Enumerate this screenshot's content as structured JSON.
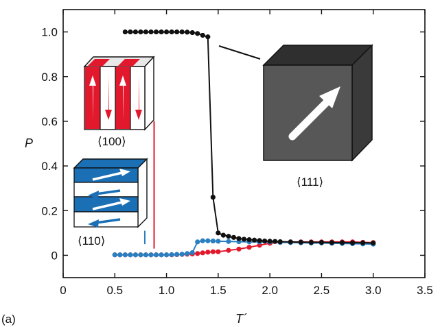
{
  "panel_label": "(a)",
  "chart_data": {
    "type": "line",
    "title": "",
    "xlabel": "T´",
    "ylabel": "P",
    "xlim": [
      0,
      3.5
    ],
    "ylim": [
      -0.1,
      1.1
    ],
    "x_ticks": [
      0,
      0.5,
      1.0,
      1.5,
      2.0,
      2.5,
      3.0,
      3.5
    ],
    "x_tick_labels": [
      "0",
      "0.5",
      "1.0",
      "1.5",
      "2.0",
      "2.5",
      "3.0",
      "3.5"
    ],
    "y_ticks": [
      0,
      0.2,
      0.4,
      0.6,
      0.8,
      1.0
    ],
    "y_tick_labels": [
      "0",
      "0.2",
      "0.4",
      "0.6",
      "0.8",
      "1.0"
    ],
    "grid": false,
    "legend": "none",
    "series": [
      {
        "label": "⟨111⟩",
        "color": "#111111",
        "x": [
          0.6,
          0.65,
          0.7,
          0.75,
          0.8,
          0.85,
          0.9,
          0.95,
          1.0,
          1.05,
          1.1,
          1.15,
          1.2,
          1.25,
          1.3,
          1.35,
          1.4,
          1.45,
          1.5,
          1.55,
          1.6,
          1.65,
          1.7,
          1.75,
          1.8,
          1.85,
          1.9,
          1.95,
          2.0,
          2.05,
          2.1,
          2.2,
          2.3,
          2.4,
          2.5,
          2.6,
          2.7,
          2.8,
          2.9,
          3.0
        ],
        "y": [
          1.0,
          1.0,
          1.0,
          1.0,
          1.0,
          1.0,
          1.0,
          1.0,
          1.0,
          1.0,
          1.0,
          1.0,
          0.999,
          0.997,
          0.993,
          0.985,
          0.978,
          0.26,
          0.1,
          0.09,
          0.085,
          0.08,
          0.075,
          0.072,
          0.07,
          0.068,
          0.066,
          0.064,
          0.063,
          0.062,
          0.061,
          0.06,
          0.059,
          0.058,
          0.058,
          0.057,
          0.057,
          0.056,
          0.056,
          0.055
        ]
      },
      {
        "label": "⟨110⟩",
        "color": "#2a7fc1",
        "x": [
          0.5,
          0.55,
          0.6,
          0.65,
          0.7,
          0.75,
          0.8,
          0.85,
          0.9,
          0.95,
          1.0,
          1.05,
          1.1,
          1.15,
          1.2,
          1.25,
          1.3,
          1.35,
          1.4,
          1.45,
          1.5,
          1.6,
          1.7,
          1.8,
          1.9,
          2.0,
          2.1,
          2.2,
          2.3,
          2.4,
          2.5,
          2.6,
          2.7,
          2.8,
          2.9,
          3.0
        ],
        "y": [
          0.002,
          0.002,
          0.002,
          0.002,
          0.002,
          0.002,
          0.002,
          0.002,
          0.002,
          0.002,
          0.002,
          0.003,
          0.004,
          0.005,
          0.008,
          0.012,
          0.06,
          0.065,
          0.065,
          0.064,
          0.063,
          0.062,
          0.061,
          0.06,
          0.06,
          0.06,
          0.058,
          0.057,
          0.056,
          0.055,
          0.055,
          0.054,
          0.053,
          0.052,
          0.051,
          0.05
        ]
      },
      {
        "label": "⟨100⟩",
        "color": "#e2192c",
        "x": [
          0.5,
          0.55,
          0.6,
          0.65,
          0.7,
          0.75,
          0.8,
          0.85,
          0.9,
          0.95,
          1.0,
          1.05,
          1.1,
          1.15,
          1.2,
          1.25,
          1.3,
          1.35,
          1.4,
          1.45,
          1.5,
          1.6,
          1.7,
          1.8,
          1.9,
          2.0,
          2.1,
          2.2,
          2.3,
          2.4,
          2.5,
          2.6,
          2.7,
          2.8,
          2.9,
          3.0
        ],
        "y": [
          0.002,
          0.002,
          0.002,
          0.002,
          0.002,
          0.002,
          0.002,
          0.002,
          0.002,
          0.002,
          0.002,
          0.002,
          0.003,
          0.004,
          0.005,
          0.006,
          0.008,
          0.011,
          0.014,
          0.016,
          0.016,
          0.022,
          0.028,
          0.036,
          0.045,
          0.054,
          0.058,
          0.06,
          0.06,
          0.06,
          0.06,
          0.06,
          0.06,
          0.06,
          0.058,
          0.057
        ]
      }
    ],
    "annotations": [
      {
        "text": "⟨100⟩",
        "color": "#e2192c",
        "marker_x": 0.88
      },
      {
        "text": "⟨110⟩",
        "color": "#2a7fc1",
        "marker_x": 0.79
      },
      {
        "text": "⟨111⟩",
        "color": "#111111"
      }
    ]
  }
}
